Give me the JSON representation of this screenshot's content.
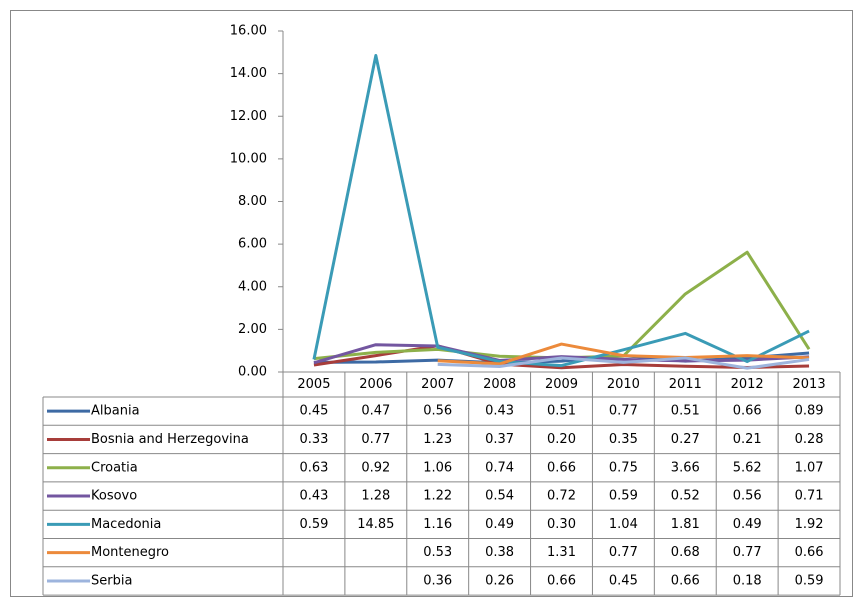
{
  "chart_data": {
    "type": "line",
    "categories": [
      "2005",
      "2006",
      "2007",
      "2008",
      "2009",
      "2010",
      "2011",
      "2012",
      "2013"
    ],
    "ylim": [
      0,
      16
    ],
    "yticks": [
      {
        "value": 0,
        "label": "0.00"
      },
      {
        "value": 2,
        "label": "2.00"
      },
      {
        "value": 4,
        "label": "4.00"
      },
      {
        "value": 6,
        "label": "6.00"
      },
      {
        "value": 8,
        "label": "8.00"
      },
      {
        "value": 10,
        "label": "10.00"
      },
      {
        "value": 12,
        "label": "12.00"
      },
      {
        "value": 14,
        "label": "14.00"
      },
      {
        "value": 16,
        "label": "16.00"
      }
    ],
    "grid": false,
    "series": [
      {
        "name": "Albania",
        "color": "#3d6aa4",
        "values": [
          0.45,
          0.47,
          0.56,
          0.43,
          0.51,
          0.77,
          0.51,
          0.66,
          0.89
        ],
        "value_labels": [
          "0.45",
          "0.47",
          "0.56",
          "0.43",
          "0.51",
          "0.77",
          "0.51",
          "0.66",
          "0.89"
        ]
      },
      {
        "name": "Bosnia and Herzegovina",
        "color": "#a73d3a",
        "values": [
          0.33,
          0.77,
          1.23,
          0.37,
          0.2,
          0.35,
          0.27,
          0.21,
          0.28
        ],
        "value_labels": [
          "0.33",
          "0.77",
          "1.23",
          "0.37",
          "0.20",
          "0.35",
          "0.27",
          "0.21",
          "0.28"
        ]
      },
      {
        "name": "Croatia",
        "color": "#8db04a",
        "values": [
          0.63,
          0.92,
          1.06,
          0.74,
          0.66,
          0.75,
          3.66,
          5.62,
          1.07
        ],
        "value_labels": [
          "0.63",
          "0.92",
          "1.06",
          "0.74",
          "0.66",
          "0.75",
          "3.66",
          "5.62",
          "1.07"
        ]
      },
      {
        "name": "Kosovo",
        "color": "#7356a0",
        "values": [
          0.43,
          1.28,
          1.22,
          0.54,
          0.72,
          0.59,
          0.52,
          0.56,
          0.71
        ],
        "value_labels": [
          "0.43",
          "1.28",
          "1.22",
          "0.54",
          "0.72",
          "0.59",
          "0.52",
          "0.56",
          "0.71"
        ]
      },
      {
        "name": "Macedonia",
        "color": "#3a9bb6",
        "values": [
          0.59,
          14.85,
          1.16,
          0.49,
          0.3,
          1.04,
          1.81,
          0.49,
          1.92
        ],
        "value_labels": [
          "0.59",
          "14.85",
          "1.16",
          "0.49",
          "0.30",
          "1.04",
          "1.81",
          "0.49",
          "1.92"
        ]
      },
      {
        "name": "Montenegro",
        "color": "#ec8a3b",
        "values": [
          null,
          null,
          0.53,
          0.38,
          1.31,
          0.77,
          0.68,
          0.77,
          0.66
        ],
        "value_labels": [
          null,
          null,
          "0.53",
          "0.38",
          "1.31",
          "0.77",
          "0.68",
          "0.77",
          "0.66"
        ]
      },
      {
        "name": "Serbia",
        "color": "#9db4dd",
        "values": [
          null,
          null,
          0.36,
          0.26,
          0.66,
          0.45,
          0.66,
          0.18,
          0.59
        ],
        "value_labels": [
          null,
          null,
          "0.36",
          "0.26",
          "0.66",
          "0.45",
          "0.66",
          "0.18",
          "0.59"
        ]
      }
    ]
  }
}
